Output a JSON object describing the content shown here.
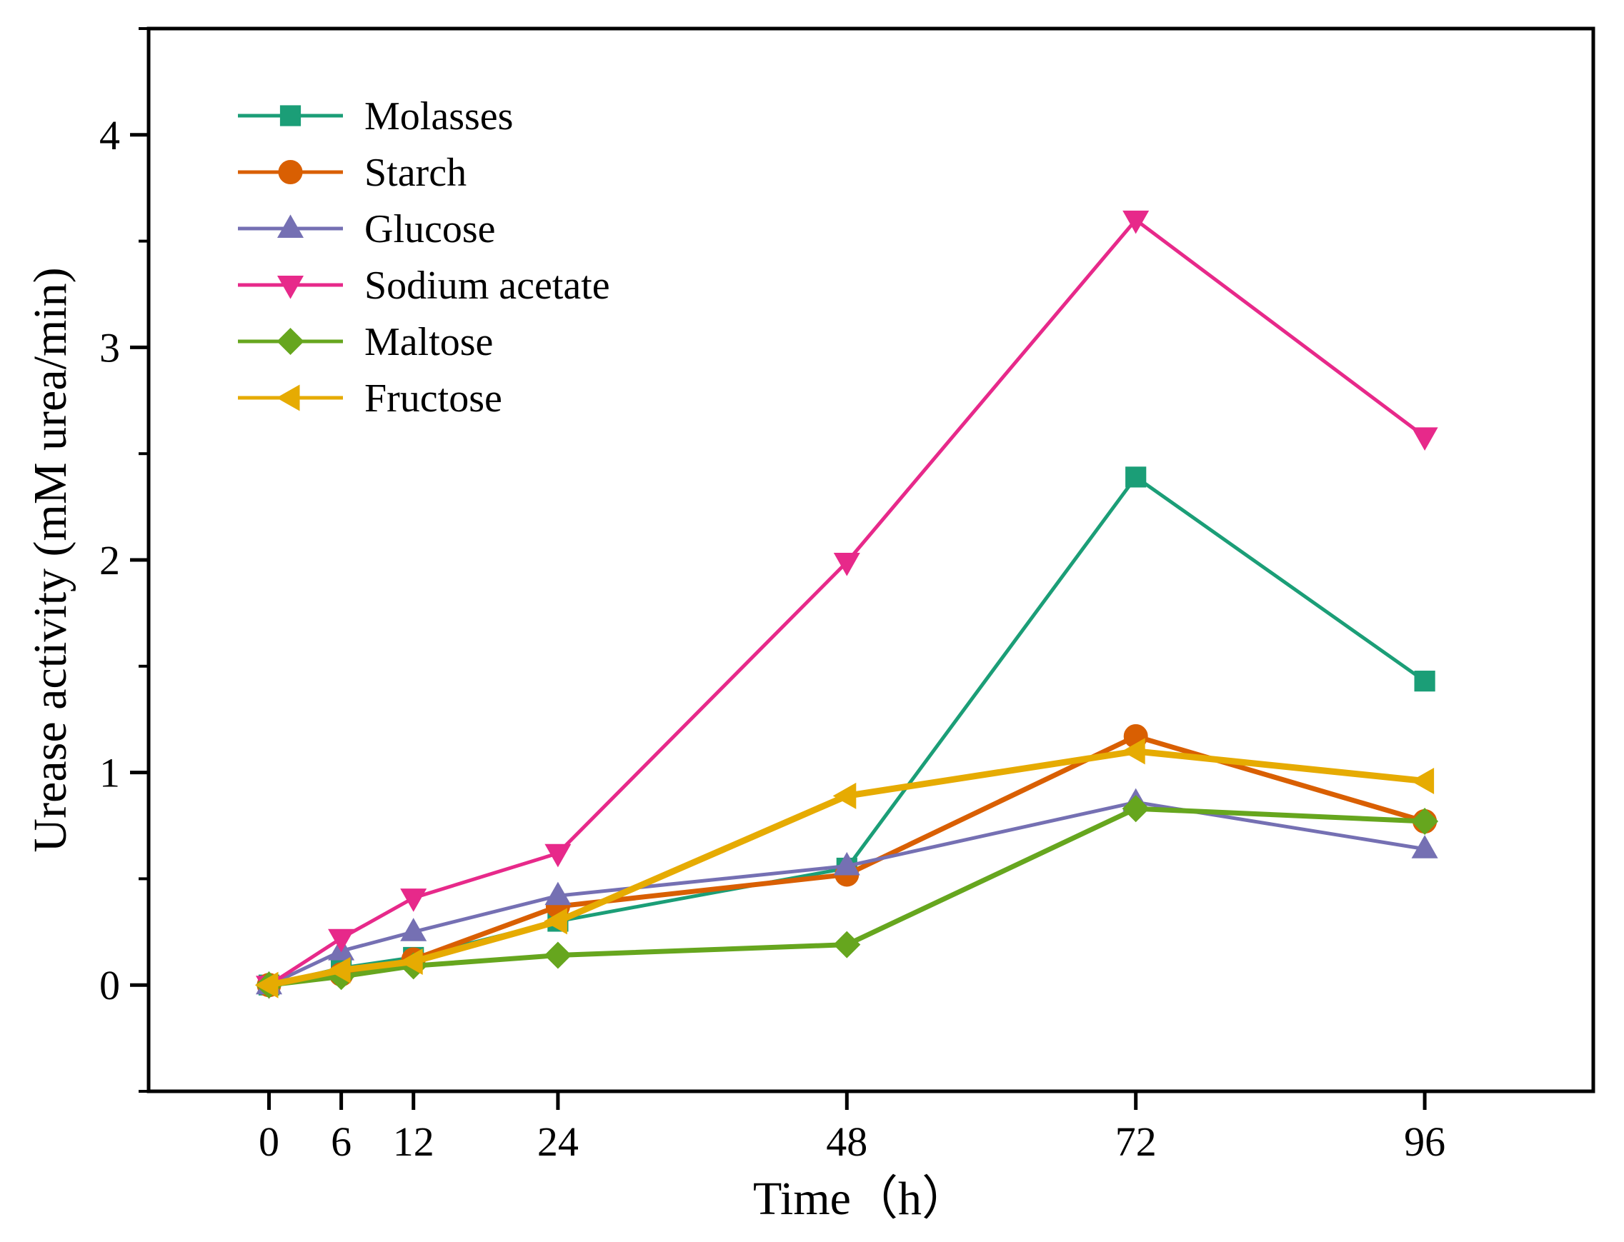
{
  "chart_data": {
    "type": "line",
    "xlabel": "Time（h）",
    "ylabel": "Urease activity (mM urea/min)",
    "x": [
      0,
      6,
      12,
      24,
      48,
      72,
      96
    ],
    "x_tick_labels": [
      "0",
      "6",
      "12",
      "24",
      "48",
      "72",
      "96"
    ],
    "y_ticks": [
      0,
      1,
      2,
      3,
      4
    ],
    "y_tick_labels": [
      "0",
      "1",
      "2",
      "3",
      "4"
    ],
    "xlim": [
      -10,
      110
    ],
    "ylim": [
      -0.5,
      4.5
    ],
    "grid": false,
    "legend_position": "top-left",
    "series": [
      {
        "name": "Molasses",
        "marker": "square",
        "color": "#1b9e77",
        "values": [
          0,
          0.08,
          0.13,
          0.3,
          0.55,
          2.39,
          1.43
        ]
      },
      {
        "name": "Starch",
        "marker": "circle",
        "color": "#d95f02",
        "values": [
          0,
          0.05,
          0.12,
          0.37,
          0.52,
          1.17,
          0.77
        ]
      },
      {
        "name": "Glucose",
        "marker": "triangle-up",
        "color": "#7570b3",
        "values": [
          0,
          0.16,
          0.25,
          0.42,
          0.56,
          0.86,
          0.64
        ]
      },
      {
        "name": "Sodium acetate",
        "marker": "triangle-down",
        "color": "#e7298a",
        "values": [
          0,
          0.22,
          0.41,
          0.62,
          1.99,
          3.6,
          2.58
        ]
      },
      {
        "name": "Maltose",
        "marker": "diamond",
        "color": "#66a61e",
        "values": [
          0,
          0.04,
          0.09,
          0.14,
          0.19,
          0.83,
          0.77
        ]
      },
      {
        "name": "Fructose",
        "marker": "triangle-left",
        "color": "#e6ab02",
        "values": [
          0,
          0.07,
          0.11,
          0.3,
          0.89,
          1.1,
          0.96
        ]
      }
    ]
  }
}
